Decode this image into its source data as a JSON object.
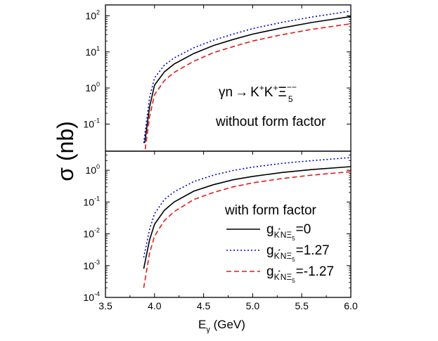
{
  "chart_data": {
    "ylabel": "σ (nb)",
    "xlabel": {
      "main": "E",
      "sub": "γ",
      "unit": " (GeV)"
    },
    "x_ticks": [
      "3.5",
      "4.0",
      "4.5",
      "5.0",
      "5.5",
      "6.0"
    ],
    "xlim": [
      3.5,
      6.0
    ],
    "panels": [
      {
        "type": "line",
        "ylog": true,
        "ylim_exp": [
          -1.75,
          2.3
        ],
        "y_tick_exponents": [
          "-1",
          "0",
          "1",
          "2"
        ],
        "y_tick_base": "10",
        "annotations": [
          {
            "reaction": {
              "gamma": "γn",
              "arrow": "→",
              "k1": "K",
              "k1sup": "+",
              "k2": "K",
              "k2sup": "+",
              "xi": "Ξ",
              "xisup": "−−",
              "xisub": "5"
            }
          },
          {
            "text": "without form factor"
          }
        ],
        "series": [
          {
            "name": "g=0",
            "color": "#000000",
            "dash": "solid",
            "x": [
              3.9,
              3.95,
              4.0,
              4.1,
              4.2,
              4.4,
              4.6,
              4.8,
              5.0,
              5.3,
              5.6,
              6.0
            ],
            "y": [
              0.03,
              0.3,
              1.2,
              2.8,
              4.6,
              9.0,
              15,
              22,
              31,
              46,
              65,
              95
            ]
          },
          {
            "name": "g=1.27",
            "color": "#0000cc",
            "dash": "dot",
            "x": [
              3.89,
              3.95,
              4.0,
              4.1,
              4.2,
              4.4,
              4.6,
              4.8,
              5.0,
              5.3,
              5.6,
              6.0
            ],
            "y": [
              0.03,
              0.55,
              1.9,
              4.3,
              6.8,
              13,
              21,
              31,
              44,
              66,
              92,
              135
            ]
          },
          {
            "name": "g=-1.27",
            "color": "#e41a1c",
            "dash": "dash",
            "x": [
              3.905,
              3.95,
              4.0,
              4.1,
              4.2,
              4.4,
              4.6,
              4.8,
              5.0,
              5.3,
              5.6,
              6.0
            ],
            "y": [
              0.02,
              0.16,
              0.65,
              1.6,
              2.7,
              5.5,
              9.5,
              14,
              20,
              30,
              42,
              60
            ]
          }
        ]
      },
      {
        "type": "line",
        "ylog": true,
        "ylim_exp": [
          -4,
          0.6
        ],
        "y_tick_exponents": [
          "-4",
          "-3",
          "-2",
          "-1",
          "0"
        ],
        "y_tick_base": "10",
        "annotations": [
          {
            "text": "with form factor"
          }
        ],
        "legend": {
          "placement": "bottom-right",
          "entries": [
            {
              "g": "g",
              "sub1": "K",
              "sub1sup": "*",
              "sub2": "NΞ",
              "sub3": "5",
              "value": "=0"
            },
            {
              "g": "g",
              "sub1": "K",
              "sub1sup": "*",
              "sub2": "NΞ",
              "sub3": "5",
              "value": "=1.27"
            },
            {
              "g": "g",
              "sub1": "K",
              "sub1sup": "*",
              "sub2": "NΞ",
              "sub3": "5",
              "value": "=-1.27"
            }
          ]
        },
        "series": [
          {
            "name": "g=0",
            "color": "#000000",
            "dash": "solid",
            "x": [
              3.89,
              3.95,
              4.0,
              4.1,
              4.2,
              4.4,
              4.6,
              4.8,
              5.0,
              5.3,
              5.6,
              6.0
            ],
            "y": [
              0.0008,
              0.0065,
              0.02,
              0.055,
              0.1,
              0.22,
              0.35,
              0.5,
              0.64,
              0.85,
              1.05,
              1.3
            ]
          },
          {
            "name": "g=1.27",
            "color": "#0000cc",
            "dash": "dot",
            "x": [
              3.89,
              3.95,
              4.0,
              4.1,
              4.2,
              4.4,
              4.6,
              4.8,
              5.0,
              5.3,
              5.6,
              6.0
            ],
            "y": [
              0.0018,
              0.014,
              0.043,
              0.12,
              0.21,
              0.44,
              0.7,
              0.98,
              1.25,
              1.65,
              2.0,
              2.5
            ]
          },
          {
            "name": "g=-1.27",
            "color": "#e41a1c",
            "dash": "dash",
            "x": [
              3.89,
              3.95,
              4.0,
              4.1,
              4.2,
              4.4,
              4.6,
              4.8,
              5.0,
              5.3,
              5.6,
              6.0
            ],
            "y": [
              0.0002,
              0.0025,
              0.0085,
              0.026,
              0.05,
              0.12,
              0.2,
              0.3,
              0.4,
              0.55,
              0.7,
              0.9
            ]
          }
        ]
      }
    ]
  }
}
